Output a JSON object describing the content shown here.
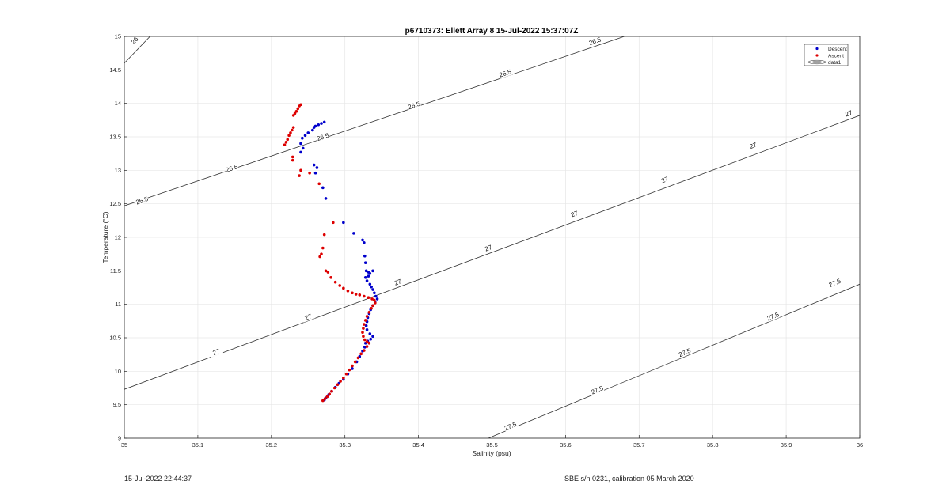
{
  "footer": {
    "left": "15-Jul-2022 22:44:37",
    "right": "SBE s/n 0231, calibration 05 March 2020"
  },
  "chart_data": {
    "type": "scatter",
    "title": "p6710373: Ellett Array 8 15-Jul-2022 15:37:07Z",
    "xlabel": "Salinity (psu)",
    "ylabel": "Temperature (°C)",
    "xlim": [
      35,
      36
    ],
    "ylim": [
      9,
      15
    ],
    "x_ticks": [
      35,
      35.1,
      35.2,
      35.3,
      35.4,
      35.5,
      35.6,
      35.7,
      35.8,
      35.9,
      36
    ],
    "x_tick_labels": [
      "35",
      "35.1",
      "35.2",
      "35.3",
      "35.4",
      "35.5",
      "35.6",
      "35.7",
      "35.8",
      "35.9",
      "36"
    ],
    "y_ticks": [
      9,
      9.5,
      10,
      10.5,
      11,
      11.5,
      12,
      12.5,
      13,
      13.5,
      14,
      14.5,
      15
    ],
    "y_tick_labels": [
      "9",
      "9.5",
      "10",
      "10.5",
      "11",
      "11.5",
      "12",
      "12.5",
      "13",
      "13.5",
      "14",
      "14.5",
      "15"
    ],
    "grid": true,
    "legend": {
      "position": "top-right",
      "entries": [
        "Descent",
        "Ascent",
        "data1"
      ]
    },
    "series": [
      {
        "name": "Descent",
        "color": "#0000cc",
        "points": [
          [
            35.272,
            13.72
          ],
          [
            35.268,
            13.7
          ],
          [
            35.264,
            13.68
          ],
          [
            35.26,
            13.66
          ],
          [
            35.258,
            13.64
          ],
          [
            35.256,
            13.6
          ],
          [
            35.25,
            13.56
          ],
          [
            35.246,
            13.52
          ],
          [
            35.242,
            13.48
          ],
          [
            35.24,
            13.4
          ],
          [
            35.243,
            13.33
          ],
          [
            35.24,
            13.27
          ],
          [
            35.258,
            13.08
          ],
          [
            35.262,
            13.04
          ],
          [
            35.26,
            12.96
          ],
          [
            35.27,
            12.74
          ],
          [
            35.274,
            12.58
          ],
          [
            35.298,
            12.22
          ],
          [
            35.312,
            12.06
          ],
          [
            35.324,
            11.96
          ],
          [
            35.326,
            11.92
          ],
          [
            35.327,
            11.72
          ],
          [
            35.328,
            11.62
          ],
          [
            35.329,
            11.5
          ],
          [
            35.332,
            11.48
          ],
          [
            35.334,
            11.46
          ],
          [
            35.338,
            11.5
          ],
          [
            35.332,
            11.42
          ],
          [
            35.328,
            11.4
          ],
          [
            35.33,
            11.35
          ],
          [
            35.334,
            11.3
          ],
          [
            35.336,
            11.26
          ],
          [
            35.338,
            11.22
          ],
          [
            35.34,
            11.17
          ],
          [
            35.342,
            11.12
          ],
          [
            35.344,
            11.08
          ],
          [
            35.341,
            11.03
          ],
          [
            35.338,
            10.98
          ],
          [
            35.335,
            10.92
          ],
          [
            35.333,
            10.86
          ],
          [
            35.331,
            10.8
          ],
          [
            35.33,
            10.74
          ],
          [
            35.329,
            10.68
          ],
          [
            35.33,
            10.62
          ],
          [
            35.334,
            10.56
          ],
          [
            35.338,
            10.52
          ],
          [
            35.335,
            10.48
          ],
          [
            35.331,
            10.45
          ],
          [
            35.328,
            10.42
          ],
          [
            35.327,
            10.36
          ],
          [
            35.324,
            10.3
          ],
          [
            35.32,
            10.22
          ],
          [
            35.316,
            10.14
          ],
          [
            35.31,
            10.04
          ],
          [
            35.304,
            9.96
          ],
          [
            35.298,
            9.88
          ],
          [
            35.292,
            9.82
          ],
          [
            35.287,
            9.76
          ],
          [
            35.282,
            9.7
          ],
          [
            35.278,
            9.65
          ],
          [
            35.274,
            9.6
          ],
          [
            35.272,
            9.57
          ]
        ]
      },
      {
        "name": "Ascent",
        "color": "#dd0000",
        "points": [
          [
            35.24,
            13.98
          ],
          [
            35.238,
            13.96
          ],
          [
            35.236,
            13.92
          ],
          [
            35.234,
            13.88
          ],
          [
            35.232,
            13.85
          ],
          [
            35.23,
            13.82
          ],
          [
            35.23,
            13.64
          ],
          [
            35.228,
            13.6
          ],
          [
            35.226,
            13.56
          ],
          [
            35.224,
            13.52
          ],
          [
            35.222,
            13.46
          ],
          [
            35.22,
            13.42
          ],
          [
            35.218,
            13.38
          ],
          [
            35.229,
            13.2
          ],
          [
            35.229,
            13.15
          ],
          [
            35.24,
            13.0
          ],
          [
            35.238,
            12.92
          ],
          [
            35.252,
            12.96
          ],
          [
            35.265,
            12.8
          ],
          [
            35.284,
            12.22
          ],
          [
            35.272,
            12.04
          ],
          [
            35.27,
            11.84
          ],
          [
            35.268,
            11.75
          ],
          [
            35.266,
            11.71
          ],
          [
            35.274,
            11.5
          ],
          [
            35.277,
            11.48
          ],
          [
            35.281,
            11.4
          ],
          [
            35.287,
            11.33
          ],
          [
            35.293,
            11.28
          ],
          [
            35.298,
            11.24
          ],
          [
            35.304,
            11.2
          ],
          [
            35.31,
            11.17
          ],
          [
            35.315,
            11.15
          ],
          [
            35.32,
            11.14
          ],
          [
            35.326,
            11.12
          ],
          [
            35.332,
            11.1
          ],
          [
            35.337,
            11.08
          ],
          [
            35.34,
            11.06
          ],
          [
            35.341,
            11.02
          ],
          [
            35.338,
            10.98
          ],
          [
            35.336,
            10.94
          ],
          [
            35.333,
            10.88
          ],
          [
            35.33,
            10.82
          ],
          [
            35.328,
            10.76
          ],
          [
            35.326,
            10.7
          ],
          [
            35.325,
            10.64
          ],
          [
            35.324,
            10.58
          ],
          [
            35.325,
            10.52
          ],
          [
            35.327,
            10.47
          ],
          [
            35.33,
            10.44
          ],
          [
            35.333,
            10.42
          ],
          [
            35.33,
            10.37
          ],
          [
            35.326,
            10.31
          ],
          [
            35.322,
            10.26
          ],
          [
            35.318,
            10.2
          ],
          [
            35.314,
            10.14
          ],
          [
            35.31,
            10.08
          ],
          [
            35.306,
            10.02
          ],
          [
            35.302,
            9.96
          ],
          [
            35.298,
            9.9
          ],
          [
            35.294,
            9.85
          ],
          [
            35.29,
            9.8
          ],
          [
            35.286,
            9.75
          ],
          [
            35.282,
            9.7
          ],
          [
            35.279,
            9.66
          ],
          [
            35.276,
            9.62
          ],
          [
            35.273,
            9.59
          ],
          [
            35.27,
            9.56
          ]
        ]
      }
    ],
    "isopycnals": [
      {
        "value": "26",
        "points": [
          [
            35,
            14.6
          ],
          [
            35.035,
            15.0
          ]
        ],
        "label_positions": [
          [
            35.014,
            14.94
          ]
        ]
      },
      {
        "value": "26.5",
        "points": [
          [
            35,
            12.47
          ],
          [
            35.68,
            15.0
          ]
        ],
        "label_positions": [
          [
            35.024,
            12.55
          ],
          [
            35.146,
            13.03
          ],
          [
            35.27,
            13.5
          ],
          [
            35.394,
            13.97
          ],
          [
            35.518,
            14.45
          ],
          [
            35.64,
            14.93
          ]
        ]
      },
      {
        "value": "27",
        "points": [
          [
            35,
            9.73
          ],
          [
            36,
            13.82
          ]
        ],
        "label_positions": [
          [
            35.125,
            10.29
          ],
          [
            35.25,
            10.81
          ],
          [
            35.372,
            11.33
          ],
          [
            35.495,
            11.84
          ],
          [
            35.612,
            12.35
          ],
          [
            35.735,
            12.86
          ],
          [
            35.855,
            13.37
          ],
          [
            35.985,
            13.85
          ]
        ]
      },
      {
        "value": "27.5",
        "points": [
          [
            35.495,
            9.0
          ],
          [
            36,
            11.3
          ]
        ],
        "label_positions": [
          [
            35.525,
            9.18
          ],
          [
            35.643,
            9.72
          ],
          [
            35.762,
            10.28
          ],
          [
            35.882,
            10.82
          ],
          [
            35.966,
            11.32
          ]
        ]
      }
    ]
  }
}
